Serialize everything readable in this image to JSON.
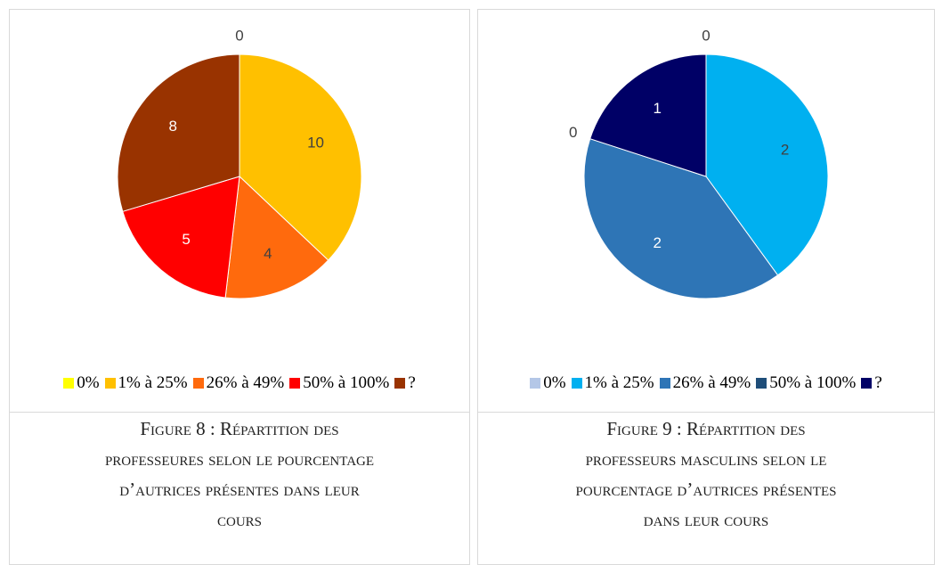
{
  "chart_data": [
    {
      "type": "pie",
      "categories": [
        "0%",
        "1% à 25%",
        "26% à 49%",
        "50% à 100%",
        "?"
      ],
      "values": [
        0,
        10,
        4,
        5,
        8
      ],
      "colors": [
        "#FFFF00",
        "#FFC000",
        "#FF6A0D",
        "#FF0000",
        "#993300"
      ]
    },
    {
      "type": "pie",
      "categories": [
        "0%",
        "1% à 25%",
        "26% à 49%",
        "50% à 100%",
        "?"
      ],
      "values": [
        0,
        2,
        2,
        0,
        1
      ],
      "colors": [
        "#B4C7E7",
        "#00B0F0",
        "#2E75B6",
        "#1F4E79",
        "#000066"
      ]
    }
  ],
  "captions": [
    "Figure 8 : Répartition des professeures selon le pourcentage d’autrices présentes dans leur cours",
    "Figure 9 : Répartition des professeurs masculins selon le pourcentage d’autrices présentes dans leur cours"
  ]
}
